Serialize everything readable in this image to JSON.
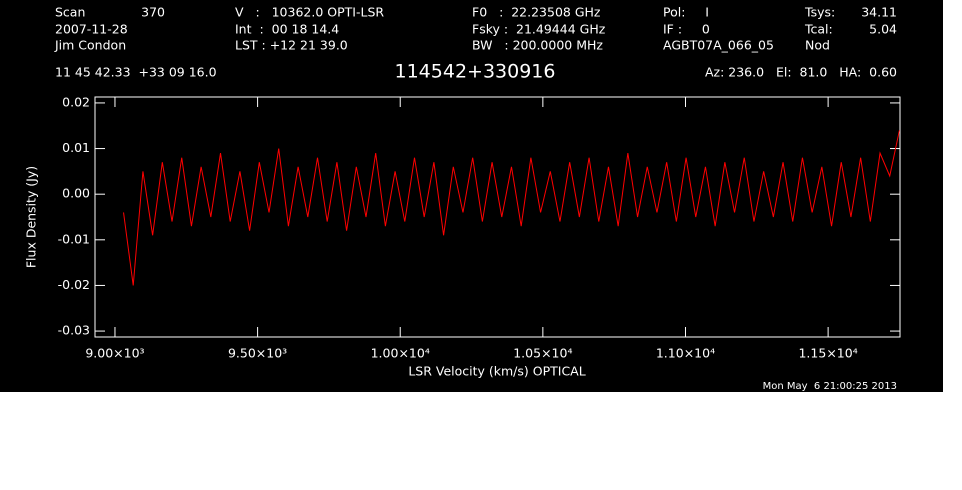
{
  "header": {
    "scan_label": "Scan",
    "scan": "370",
    "date": "2007-11-28",
    "observer": "Jim Condon",
    "velocity": "V   :   10362.0 OPTI-LSR",
    "int": "Int  :  00 18 14.4",
    "lst": "LST : +12 21 39.0",
    "f0": "F0   :  22.23508 GHz",
    "fsky": "Fsky :  21.49444 GHz",
    "bw": "BW   : 200.0000 MHz",
    "pol": "Pol:     I",
    "if": "IF :     0",
    "project": "AGBT07A_066_05",
    "tsys_label": "Tsys:",
    "tsys": "34.11",
    "tcal_label": "Tcal:",
    "tcal": "5.04",
    "proc": "Nod",
    "coords": "11 45 42.33  +33 09 16.0",
    "az_el_ha": "Az: 236.0   El:  81.0   HA:  0.60"
  },
  "footer": {
    "timestamp": "Mon May  6 21:00:25 2013"
  },
  "chart_data": {
    "type": "line",
    "title": "114542+330916",
    "x_label": "LSR Velocity (km/s) OPTICAL",
    "y_label": "Flux Density (Jy)",
    "color": "#ff0000",
    "x": [
      9030,
      9064,
      9098,
      9132,
      9166,
      9200,
      9234,
      9268,
      9302,
      9336,
      9370,
      9404,
      9438,
      9472,
      9506,
      9540,
      9574,
      9608,
      9642,
      9676,
      9710,
      9744,
      9778,
      9812,
      9846,
      9880,
      9914,
      9948,
      9982,
      10016,
      10050,
      10084,
      10118,
      10152,
      10186,
      10220,
      10254,
      10288,
      10322,
      10356,
      10390,
      10424,
      10458,
      10492,
      10526,
      10560,
      10594,
      10628,
      10662,
      10696,
      10730,
      10764,
      10798,
      10832,
      10866,
      10900,
      10934,
      10968,
      11002,
      11036,
      11070,
      11104,
      11138,
      11172,
      11206,
      11240,
      11274,
      11308,
      11342,
      11376,
      11410,
      11444,
      11478,
      11512,
      11546,
      11580,
      11614,
      11648,
      11682,
      11716,
      11750
    ],
    "values": [
      -0.004,
      -0.02,
      0.005,
      -0.009,
      0.007,
      -0.006,
      0.008,
      -0.007,
      0.006,
      -0.005,
      0.009,
      -0.006,
      0.005,
      -0.008,
      0.007,
      -0.004,
      0.01,
      -0.007,
      0.006,
      -0.005,
      0.008,
      -0.006,
      0.007,
      -0.008,
      0.006,
      -0.005,
      0.009,
      -0.007,
      0.005,
      -0.006,
      0.008,
      -0.005,
      0.007,
      -0.009,
      0.006,
      -0.004,
      0.008,
      -0.006,
      0.007,
      -0.005,
      0.006,
      -0.007,
      0.008,
      -0.004,
      0.005,
      -0.006,
      0.007,
      -0.005,
      0.008,
      -0.006,
      0.006,
      -0.007,
      0.009,
      -0.005,
      0.006,
      -0.004,
      0.007,
      -0.006,
      0.008,
      -0.005,
      0.006,
      -0.007,
      0.007,
      -0.004,
      0.008,
      -0.006,
      0.005,
      -0.005,
      0.007,
      -0.006,
      0.008,
      -0.004,
      0.006,
      -0.007,
      0.007,
      -0.005,
      0.008,
      -0.006,
      0.009,
      0.004,
      0.014
    ],
    "xlim": [
      8930,
      11752
    ],
    "ylim": [
      -0.0313,
      0.0213
    ],
    "xticks": [
      {
        "value": 9000,
        "label": "9.00×10³"
      },
      {
        "value": 9500,
        "label": "9.50×10³"
      },
      {
        "value": 10000,
        "label": "1.00×10⁴"
      },
      {
        "value": 10500,
        "label": "1.05×10⁴"
      },
      {
        "value": 11000,
        "label": "1.10×10⁴"
      },
      {
        "value": 11500,
        "label": "1.15×10⁴"
      }
    ],
    "yticks": [
      0.02,
      0.01,
      {
        "value": 0,
        "label": "0.00"
      },
      -0.01,
      -0.02,
      -0.03
    ]
  }
}
